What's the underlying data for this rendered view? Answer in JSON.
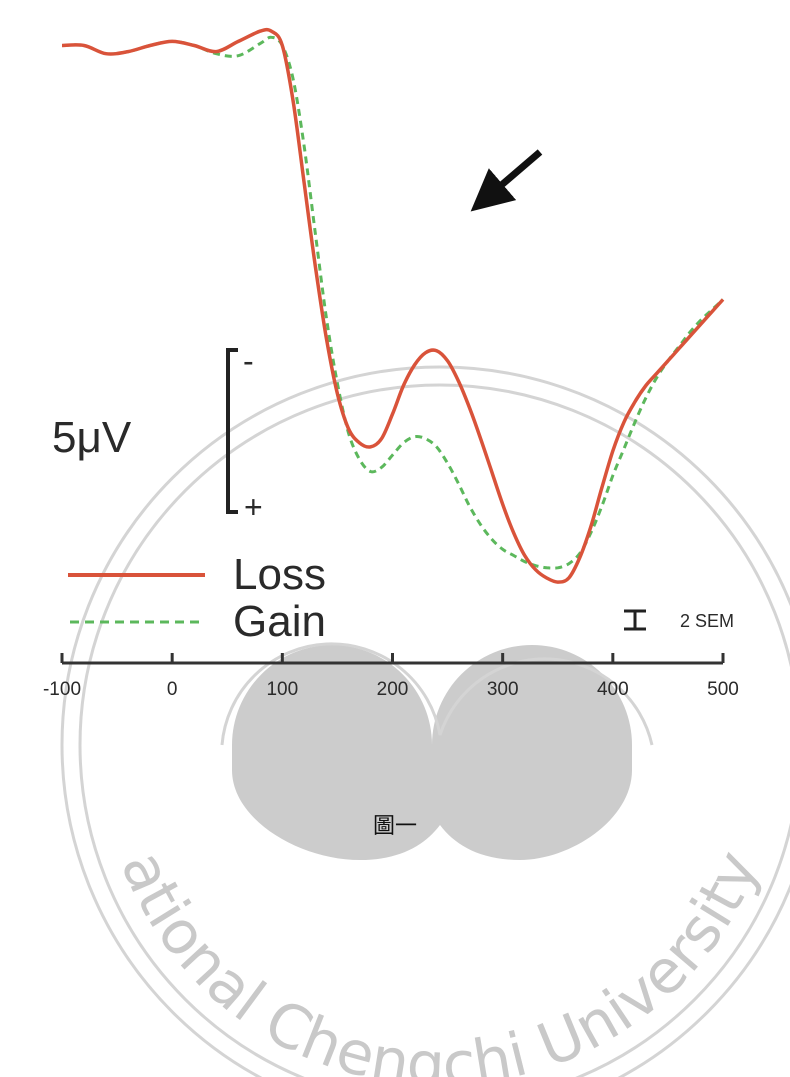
{
  "chart_data": {
    "type": "line",
    "title": "",
    "xlabel": "",
    "ylabel": "",
    "x_ticks": [
      -100,
      0,
      100,
      200,
      300,
      400,
      500
    ],
    "xlim": [
      -100,
      500
    ],
    "ylim": [
      -13,
      14
    ],
    "y_inverted": true,
    "series": [
      {
        "name": "Loss",
        "color": "#d9533a",
        "dash": "solid",
        "x": [
          -100,
          -80,
          -60,
          -40,
          -20,
          0,
          20,
          40,
          60,
          80,
          90,
          100,
          110,
          120,
          130,
          140,
          150,
          160,
          170,
          180,
          190,
          200,
          210,
          220,
          230,
          240,
          250,
          260,
          270,
          280,
          290,
          300,
          310,
          320,
          330,
          340,
          350,
          360,
          370,
          380,
          390,
          400,
          410,
          420,
          430,
          440,
          450,
          460,
          470,
          480,
          490,
          500
        ],
        "y": [
          -12.0,
          -12.0,
          -11.6,
          -11.7,
          -12.0,
          -12.2,
          -12.0,
          -11.7,
          -12.2,
          -12.7,
          -12.7,
          -12.0,
          -9.2,
          -5.2,
          -1.2,
          2.3,
          5.0,
          6.7,
          7.4,
          7.6,
          7.2,
          6.0,
          4.6,
          3.6,
          3.0,
          2.9,
          3.4,
          4.4,
          5.7,
          7.2,
          8.8,
          10.4,
          11.8,
          12.9,
          13.6,
          14.0,
          14.2,
          14.0,
          13.0,
          11.5,
          9.6,
          7.8,
          6.4,
          5.4,
          4.6,
          4.0,
          3.4,
          2.8,
          2.2,
          1.6,
          1.0,
          0.4
        ]
      },
      {
        "name": "Gain",
        "color": "#5cb85c",
        "dash": "dashed",
        "x": [
          -100,
          -80,
          -60,
          -40,
          -20,
          0,
          20,
          40,
          60,
          80,
          90,
          100,
          110,
          120,
          130,
          140,
          150,
          160,
          170,
          180,
          190,
          200,
          210,
          220,
          230,
          240,
          250,
          260,
          270,
          280,
          290,
          300,
          310,
          320,
          330,
          340,
          350,
          360,
          370,
          380,
          390,
          400,
          410,
          420,
          430,
          440,
          450,
          460,
          470,
          480,
          490,
          500
        ],
        "y": [
          -12.0,
          -12.0,
          -11.6,
          -11.7,
          -12.0,
          -12.2,
          -12.0,
          -11.6,
          -11.5,
          -12.1,
          -12.4,
          -12.0,
          -10.3,
          -7.0,
          -2.8,
          1.3,
          4.5,
          6.9,
          8.2,
          8.8,
          8.6,
          8.0,
          7.4,
          7.1,
          7.2,
          7.6,
          8.4,
          9.4,
          10.5,
          11.4,
          12.1,
          12.6,
          12.9,
          13.2,
          13.4,
          13.5,
          13.5,
          13.3,
          12.8,
          11.8,
          10.5,
          9.0,
          7.7,
          6.4,
          5.2,
          4.2,
          3.4,
          2.7,
          2.0,
          1.4,
          0.9,
          0.4
        ]
      }
    ],
    "legend": {
      "placement": "bottom-left",
      "entries": [
        "Loss",
        "Gain"
      ]
    },
    "scale_bar": {
      "label": "5μV",
      "neg_sign": "-",
      "pos_sign": "+",
      "microvolts": 5
    },
    "sem_label": "2 SEM",
    "annotation": "arrow pointing at the Loss peak near 240"
  },
  "watermark": {
    "text": "National Chengchi University",
    "visible_text": "ational Chengchi University",
    "color": "#c9c9c9"
  },
  "caption": "圖一"
}
